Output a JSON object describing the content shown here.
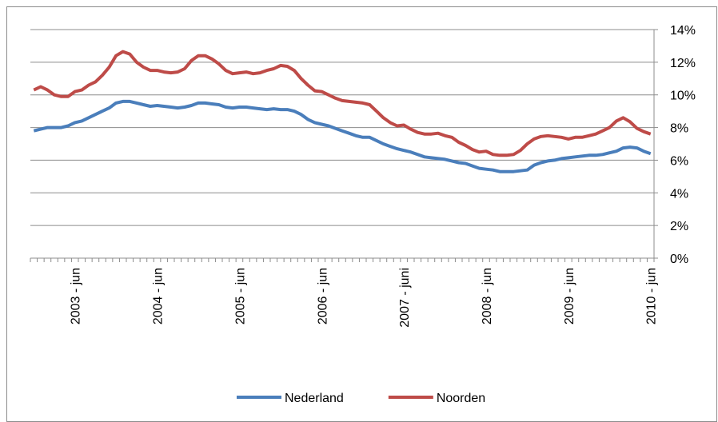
{
  "chart_data": {
    "type": "line",
    "categories": [
      null,
      null,
      null,
      null,
      null,
      null,
      "2003 - jun",
      null,
      null,
      null,
      null,
      null,
      null,
      null,
      null,
      null,
      null,
      null,
      "2004 - jun",
      null,
      null,
      null,
      null,
      null,
      null,
      null,
      null,
      null,
      null,
      null,
      "2005 - jun",
      null,
      null,
      null,
      null,
      null,
      null,
      null,
      null,
      null,
      null,
      null,
      "2006 - jun",
      null,
      null,
      null,
      null,
      null,
      null,
      null,
      null,
      null,
      null,
      null,
      "2007 - juni",
      null,
      null,
      null,
      null,
      null,
      null,
      null,
      null,
      null,
      null,
      null,
      "2008 - jun",
      null,
      null,
      null,
      null,
      null,
      null,
      null,
      null,
      null,
      null,
      null,
      "2009 - jun",
      null,
      null,
      null,
      null,
      null,
      null,
      null,
      null,
      null,
      null,
      null,
      "2010 - jun"
    ],
    "series": [
      {
        "name": "Nederland",
        "color": "#4a7ebb",
        "values": [
          7.8,
          7.9,
          8.0,
          8.0,
          8.0,
          8.1,
          8.3,
          8.4,
          8.6,
          8.8,
          9.0,
          9.2,
          9.5,
          9.6,
          9.6,
          9.5,
          9.4,
          9.3,
          9.35,
          9.3,
          9.25,
          9.2,
          9.25,
          9.35,
          9.5,
          9.5,
          9.45,
          9.4,
          9.25,
          9.2,
          9.25,
          9.25,
          9.2,
          9.15,
          9.1,
          9.15,
          9.1,
          9.1,
          9.0,
          8.8,
          8.5,
          8.3,
          8.2,
          8.1,
          7.95,
          7.8,
          7.65,
          7.5,
          7.4,
          7.4,
          7.2,
          7.0,
          6.85,
          6.7,
          6.6,
          6.5,
          6.35,
          6.2,
          6.15,
          6.1,
          6.05,
          5.95,
          5.85,
          5.8,
          5.65,
          5.5,
          5.45,
          5.4,
          5.3,
          5.3,
          5.3,
          5.35,
          5.4,
          5.7,
          5.85,
          5.95,
          6.0,
          6.1,
          6.15,
          6.2,
          6.25,
          6.3,
          6.3,
          6.35,
          6.45,
          6.55,
          6.75,
          6.8,
          6.75,
          6.55,
          6.4
        ]
      },
      {
        "name": "Noorden",
        "color": "#be4b48",
        "values": [
          10.3,
          10.5,
          10.3,
          10.0,
          9.9,
          9.9,
          10.2,
          10.3,
          10.6,
          10.8,
          11.2,
          11.7,
          12.4,
          12.65,
          12.5,
          12.0,
          11.7,
          11.5,
          11.5,
          11.4,
          11.35,
          11.4,
          11.6,
          12.1,
          12.4,
          12.4,
          12.2,
          11.9,
          11.5,
          11.3,
          11.35,
          11.4,
          11.3,
          11.35,
          11.5,
          11.6,
          11.8,
          11.75,
          11.5,
          11.0,
          10.6,
          10.25,
          10.2,
          10.0,
          9.8,
          9.65,
          9.6,
          9.55,
          9.5,
          9.4,
          9.0,
          8.6,
          8.3,
          8.1,
          8.15,
          7.9,
          7.7,
          7.6,
          7.6,
          7.65,
          7.5,
          7.4,
          7.1,
          6.9,
          6.65,
          6.5,
          6.55,
          6.35,
          6.3,
          6.3,
          6.35,
          6.6,
          7.0,
          7.3,
          7.45,
          7.5,
          7.45,
          7.4,
          7.3,
          7.4,
          7.4,
          7.5,
          7.6,
          7.8,
          8.0,
          8.4,
          8.6,
          8.35,
          7.95,
          7.75,
          7.6
        ]
      }
    ],
    "ylim": [
      0,
      14
    ],
    "yticks": [
      {
        "value": 0,
        "label": "0%"
      },
      {
        "value": 2,
        "label": "2%"
      },
      {
        "value": 4,
        "label": "4%"
      },
      {
        "value": 6,
        "label": "6%"
      },
      {
        "value": 8,
        "label": "8%"
      },
      {
        "value": 10,
        "label": "10%"
      },
      {
        "value": 12,
        "label": "12%"
      },
      {
        "value": 14,
        "label": "14%"
      }
    ],
    "grid": true,
    "legend": "bottom"
  }
}
